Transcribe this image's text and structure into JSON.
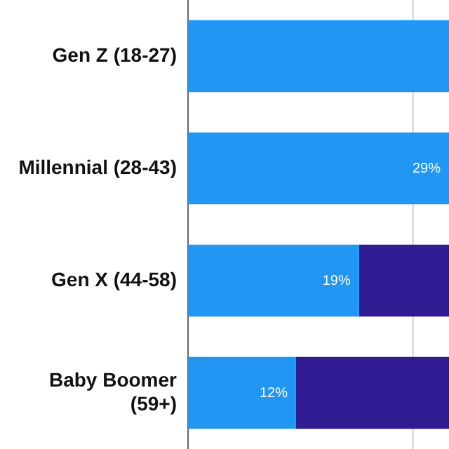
{
  "chart_data": {
    "type": "bar",
    "orientation": "horizontal",
    "stacked": true,
    "categories": [
      "Gen Z (18-27)",
      "Millennial (28-43)",
      "Gen X (44-58)",
      "Baby Boomer (59+)"
    ],
    "series": [
      {
        "color": "#2196f3",
        "values": [
          29,
          29,
          19,
          12
        ],
        "value_labels": [
          null,
          "29%",
          "19%",
          "12%"
        ]
      },
      {
        "color": "#311b92",
        "values": [
          0,
          0,
          10,
          17
        ]
      }
    ],
    "xlim": [
      0,
      29
    ],
    "ref_lines": [
      {
        "axis": "x",
        "value": 25,
        "color": "#d0d0d0"
      }
    ],
    "legend": false,
    "tick_labels": "y"
  }
}
